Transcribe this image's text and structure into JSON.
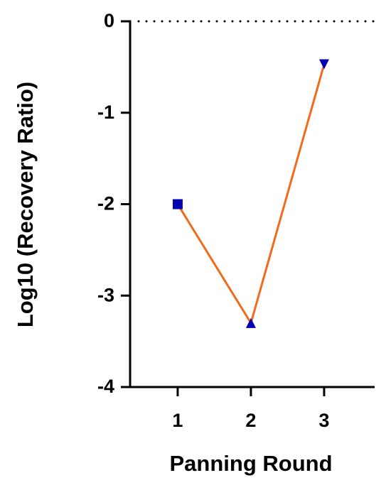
{
  "chart_data": {
    "type": "line",
    "x_label": "Panning Round",
    "y_label": "Log10 (Recovery Ratio)",
    "x": [
      1,
      2,
      3
    ],
    "series": [
      {
        "values": [
          -2,
          -3.3,
          -0.47
        ],
        "color": "#f26b1d",
        "marker_color": "#0000b0",
        "markers": [
          "square",
          "triangle-up",
          "triangle-down"
        ]
      }
    ],
    "xlim": [
      0.35,
      3.69
    ],
    "xticks": [
      1,
      2,
      3
    ],
    "ylim": [
      -4,
      0
    ],
    "yticks": [
      0,
      -1,
      -2,
      -3,
      -4
    ],
    "hline": 0
  }
}
